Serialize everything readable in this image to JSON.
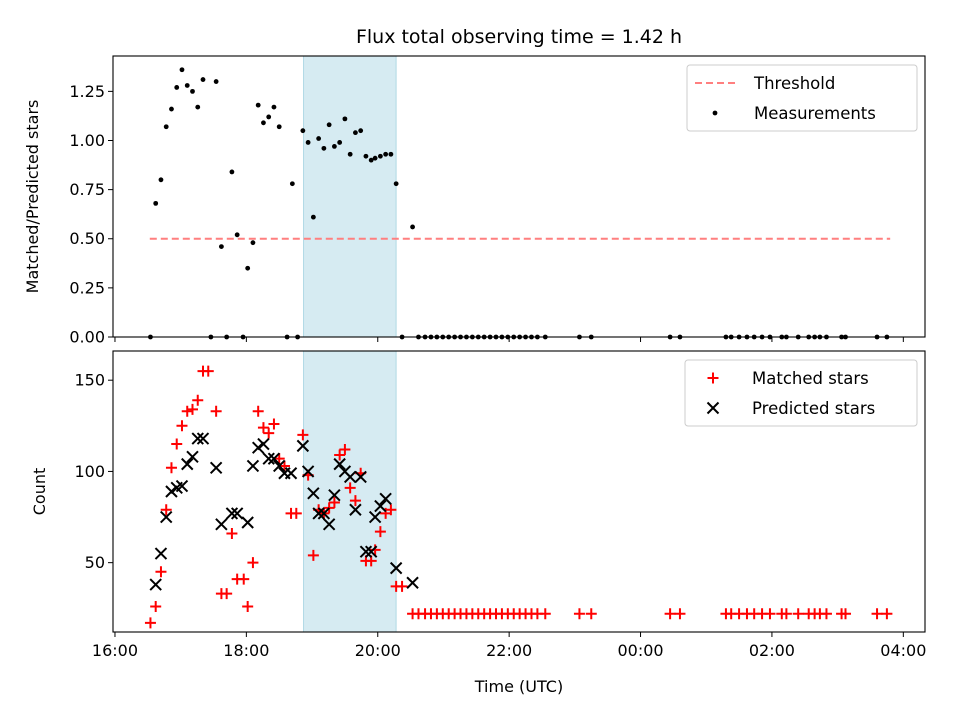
{
  "chart_data": [
    {
      "type": "scatter",
      "title": "Flux total observing time = 1.42 h",
      "xlabel": "",
      "ylabel": "Matched/Predicted stars",
      "xunit": "hours since 16:00 UTC (tick labels show clock time)",
      "xlim": [
        15.97,
        28.33
      ],
      "ylim": [
        0,
        1.43
      ],
      "yticks": [
        0.0,
        0.25,
        0.5,
        0.75,
        1.0,
        1.25
      ],
      "ytick_labels": [
        "0.00",
        "0.25",
        "0.50",
        "0.75",
        "1.00",
        "1.25"
      ],
      "shaded_span": [
        18.87,
        20.28
      ],
      "legend_position": "upper right",
      "series": [
        {
          "name": "Threshold",
          "kind": "line",
          "style": "dashed",
          "color": "#ff7f7f",
          "x": [
            16.53,
            27.8
          ],
          "y": [
            0.5,
            0.5
          ]
        },
        {
          "name": "Measurements",
          "kind": "scatter",
          "marker": "dot",
          "color": "#000000",
          "points": [
            [
              16.54,
              0.0
            ],
            [
              16.62,
              0.68
            ],
            [
              16.7,
              0.8
            ],
            [
              16.78,
              1.07
            ],
            [
              16.86,
              1.16
            ],
            [
              16.94,
              1.27
            ],
            [
              17.02,
              1.36
            ],
            [
              17.1,
              1.28
            ],
            [
              17.18,
              1.25
            ],
            [
              17.26,
              1.17
            ],
            [
              17.34,
              1.31
            ],
            [
              17.46,
              0.0
            ],
            [
              17.54,
              1.3
            ],
            [
              17.62,
              0.46
            ],
            [
              17.7,
              0.0
            ],
            [
              17.78,
              0.84
            ],
            [
              17.86,
              0.52
            ],
            [
              17.95,
              0.0
            ],
            [
              18.02,
              0.35
            ],
            [
              18.1,
              0.48
            ],
            [
              18.18,
              1.18
            ],
            [
              18.26,
              1.09
            ],
            [
              18.34,
              1.12
            ],
            [
              18.42,
              1.17
            ],
            [
              18.5,
              1.07
            ],
            [
              18.62,
              0.0
            ],
            [
              18.7,
              0.78
            ],
            [
              18.78,
              0.0
            ],
            [
              18.86,
              1.05
            ],
            [
              18.94,
              0.99
            ],
            [
              19.02,
              0.61
            ],
            [
              19.1,
              1.01
            ],
            [
              19.18,
              0.96
            ],
            [
              19.26,
              1.08
            ],
            [
              19.34,
              0.97
            ],
            [
              19.42,
              0.99
            ],
            [
              19.5,
              1.11
            ],
            [
              19.58,
              0.93
            ],
            [
              19.66,
              1.04
            ],
            [
              19.74,
              1.05
            ],
            [
              19.82,
              0.92
            ],
            [
              19.9,
              0.9
            ],
            [
              19.96,
              0.91
            ],
            [
              20.04,
              0.92
            ],
            [
              20.12,
              0.93
            ],
            [
              20.2,
              0.93
            ],
            [
              20.28,
              0.78
            ],
            [
              20.37,
              0.0
            ],
            [
              20.53,
              0.56
            ],
            [
              20.62,
              0.0
            ],
            [
              20.72,
              0.0
            ],
            [
              20.81,
              0.0
            ],
            [
              20.9,
              0.0
            ],
            [
              20.99,
              0.0
            ],
            [
              21.08,
              0.0
            ],
            [
              21.17,
              0.0
            ],
            [
              21.26,
              0.0
            ],
            [
              21.35,
              0.0
            ],
            [
              21.44,
              0.0
            ],
            [
              21.53,
              0.0
            ],
            [
              21.62,
              0.0
            ],
            [
              21.71,
              0.0
            ],
            [
              21.8,
              0.0
            ],
            [
              21.89,
              0.0
            ],
            [
              21.98,
              0.0
            ],
            [
              22.07,
              0.0
            ],
            [
              22.16,
              0.0
            ],
            [
              22.25,
              0.0
            ],
            [
              22.34,
              0.0
            ],
            [
              22.43,
              0.0
            ],
            [
              22.55,
              0.0
            ],
            [
              23.07,
              0.0
            ],
            [
              23.25,
              0.0
            ],
            [
              24.45,
              0.0
            ],
            [
              24.6,
              0.0
            ],
            [
              25.3,
              0.0
            ],
            [
              25.38,
              0.0
            ],
            [
              25.5,
              0.0
            ],
            [
              25.62,
              0.0
            ],
            [
              25.73,
              0.0
            ],
            [
              25.85,
              0.0
            ],
            [
              25.97,
              0.0
            ],
            [
              26.15,
              0.0
            ],
            [
              26.22,
              0.0
            ],
            [
              26.4,
              0.0
            ],
            [
              26.56,
              0.0
            ],
            [
              26.65,
              0.0
            ],
            [
              26.73,
              0.0
            ],
            [
              26.83,
              0.0
            ],
            [
              27.06,
              0.0
            ],
            [
              27.12,
              0.0
            ],
            [
              27.6,
              0.0
            ],
            [
              27.75,
              0.0
            ]
          ]
        }
      ]
    },
    {
      "type": "scatter",
      "title": "",
      "xlabel": "Time (UTC)",
      "ylabel": "Count",
      "xunit": "hours since 16:00 UTC (tick labels show clock time)",
      "xlim": [
        15.97,
        28.33
      ],
      "ylim": [
        12,
        166
      ],
      "yticks": [
        50,
        100,
        150
      ],
      "ytick_labels": [
        "50",
        "100",
        "150"
      ],
      "xticks": [
        16,
        18,
        20,
        22,
        24,
        26,
        28
      ],
      "xtick_labels": [
        "16:00",
        "18:00",
        "20:00",
        "22:00",
        "00:00",
        "02:00",
        "04:00"
      ],
      "shaded_span": [
        18.87,
        20.28
      ],
      "legend_position": "upper right",
      "series": [
        {
          "name": "Matched stars",
          "kind": "scatter",
          "marker": "plus",
          "color": "#ff0000",
          "points": [
            [
              16.54,
              17
            ],
            [
              16.62,
              26
            ],
            [
              16.7,
              45
            ],
            [
              16.78,
              79
            ],
            [
              16.86,
              102
            ],
            [
              16.94,
              115
            ],
            [
              17.02,
              125
            ],
            [
              17.1,
              133
            ],
            [
              17.18,
              134
            ],
            [
              17.26,
              139
            ],
            [
              17.34,
              155
            ],
            [
              17.42,
              155
            ],
            [
              17.54,
              133
            ],
            [
              17.62,
              33
            ],
            [
              17.7,
              33
            ],
            [
              17.78,
              66
            ],
            [
              17.86,
              41
            ],
            [
              17.96,
              41
            ],
            [
              18.02,
              26
            ],
            [
              18.1,
              50
            ],
            [
              18.18,
              133
            ],
            [
              18.26,
              124
            ],
            [
              18.34,
              121
            ],
            [
              18.42,
              126
            ],
            [
              18.5,
              107
            ],
            [
              18.58,
              103
            ],
            [
              18.68,
              77
            ],
            [
              18.76,
              77
            ],
            [
              18.86,
              120
            ],
            [
              18.94,
              98
            ],
            [
              19.02,
              54
            ],
            [
              19.1,
              79
            ],
            [
              19.18,
              77
            ],
            [
              19.26,
              80
            ],
            [
              19.34,
              83
            ],
            [
              19.42,
              109
            ],
            [
              19.5,
              112
            ],
            [
              19.58,
              91
            ],
            [
              19.66,
              84
            ],
            [
              19.74,
              99
            ],
            [
              19.82,
              51
            ],
            [
              19.9,
              51
            ],
            [
              19.96,
              57
            ],
            [
              20.04,
              67
            ],
            [
              20.12,
              77
            ],
            [
              20.2,
              79
            ],
            [
              20.28,
              37
            ],
            [
              20.37,
              37
            ],
            [
              20.53,
              22
            ],
            [
              20.62,
              22
            ],
            [
              20.72,
              22
            ],
            [
              20.81,
              22
            ],
            [
              20.9,
              22
            ],
            [
              20.99,
              22
            ],
            [
              21.08,
              22
            ],
            [
              21.17,
              22
            ],
            [
              21.26,
              22
            ],
            [
              21.35,
              22
            ],
            [
              21.44,
              22
            ],
            [
              21.53,
              22
            ],
            [
              21.62,
              22
            ],
            [
              21.71,
              22
            ],
            [
              21.8,
              22
            ],
            [
              21.89,
              22
            ],
            [
              21.98,
              22
            ],
            [
              22.07,
              22
            ],
            [
              22.16,
              22
            ],
            [
              22.25,
              22
            ],
            [
              22.34,
              22
            ],
            [
              22.43,
              22
            ],
            [
              22.55,
              22
            ],
            [
              23.07,
              22
            ],
            [
              23.25,
              22
            ],
            [
              24.45,
              22
            ],
            [
              24.6,
              22
            ],
            [
              25.3,
              22
            ],
            [
              25.38,
              22
            ],
            [
              25.5,
              22
            ],
            [
              25.62,
              22
            ],
            [
              25.73,
              22
            ],
            [
              25.85,
              22
            ],
            [
              25.97,
              22
            ],
            [
              26.15,
              22
            ],
            [
              26.22,
              22
            ],
            [
              26.4,
              22
            ],
            [
              26.56,
              22
            ],
            [
              26.65,
              22
            ],
            [
              26.73,
              22
            ],
            [
              26.83,
              22
            ],
            [
              27.06,
              22
            ],
            [
              27.12,
              22
            ],
            [
              27.6,
              22
            ],
            [
              27.75,
              22
            ]
          ]
        },
        {
          "name": "Predicted stars",
          "kind": "scatter",
          "marker": "x",
          "color": "#000000",
          "points": [
            [
              16.62,
              38
            ],
            [
              16.7,
              55
            ],
            [
              16.78,
              75
            ],
            [
              16.86,
              89
            ],
            [
              16.94,
              91
            ],
            [
              17.02,
              92
            ],
            [
              17.1,
              104
            ],
            [
              17.18,
              108
            ],
            [
              17.26,
              118
            ],
            [
              17.34,
              118
            ],
            [
              17.54,
              102
            ],
            [
              17.62,
              71
            ],
            [
              17.78,
              77
            ],
            [
              17.86,
              77
            ],
            [
              18.02,
              72
            ],
            [
              18.1,
              103
            ],
            [
              18.18,
              113
            ],
            [
              18.26,
              115
            ],
            [
              18.34,
              107
            ],
            [
              18.42,
              107
            ],
            [
              18.5,
              103
            ],
            [
              18.58,
              99
            ],
            [
              18.68,
              99
            ],
            [
              18.86,
              114
            ],
            [
              18.94,
              100
            ],
            [
              19.02,
              88
            ],
            [
              19.1,
              77
            ],
            [
              19.18,
              77
            ],
            [
              19.26,
              71
            ],
            [
              19.34,
              87
            ],
            [
              19.42,
              104
            ],
            [
              19.5,
              100
            ],
            [
              19.58,
              97
            ],
            [
              19.66,
              79
            ],
            [
              19.74,
              97
            ],
            [
              19.82,
              56
            ],
            [
              19.9,
              56
            ],
            [
              19.96,
              75
            ],
            [
              20.04,
              81
            ],
            [
              20.12,
              85
            ],
            [
              20.28,
              47
            ],
            [
              20.53,
              39
            ]
          ]
        }
      ]
    }
  ]
}
